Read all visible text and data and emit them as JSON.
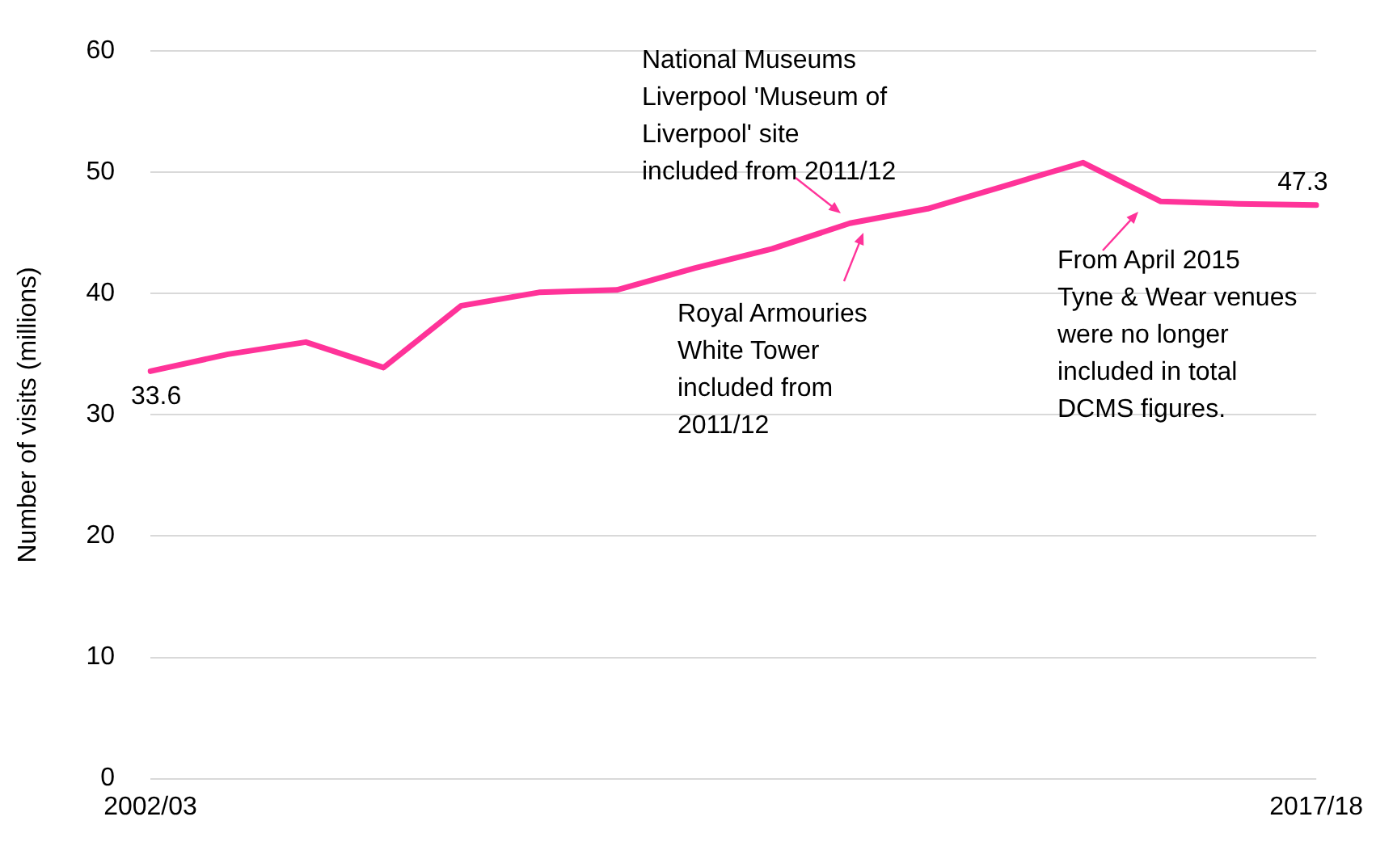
{
  "chart_data": {
    "type": "line",
    "ylabel": "Number of visits (millions)",
    "categories": [
      "2002/03",
      null,
      null,
      null,
      null,
      null,
      null,
      null,
      null,
      null,
      null,
      null,
      null,
      null,
      null,
      "2017/18"
    ],
    "series": [
      {
        "color": "#ff3399",
        "values": [
          33.6,
          35.0,
          36.0,
          33.9,
          39.0,
          40.1,
          40.3,
          42.1,
          43.7,
          45.8,
          47.0,
          48.9,
          50.8,
          47.6,
          47.4,
          47.3
        ],
        "value_labels": [
          "33.6",
          null,
          null,
          null,
          null,
          null,
          null,
          null,
          null,
          null,
          null,
          null,
          null,
          null,
          null,
          "47.3"
        ]
      }
    ],
    "ylim": [
      0,
      60
    ],
    "yticks": [
      0,
      10,
      20,
      30,
      40,
      50,
      60
    ],
    "grid": "y",
    "marker": "none",
    "line_style": "solid",
    "annotations": [
      "National Museums Liverpool 'Museum of Liverpool' site included from 2011/12",
      "Royal Armouries White Tower included from 2011/12",
      "From April 2015 Tyne & Wear venues were no longer included in total DCMS figures."
    ]
  }
}
